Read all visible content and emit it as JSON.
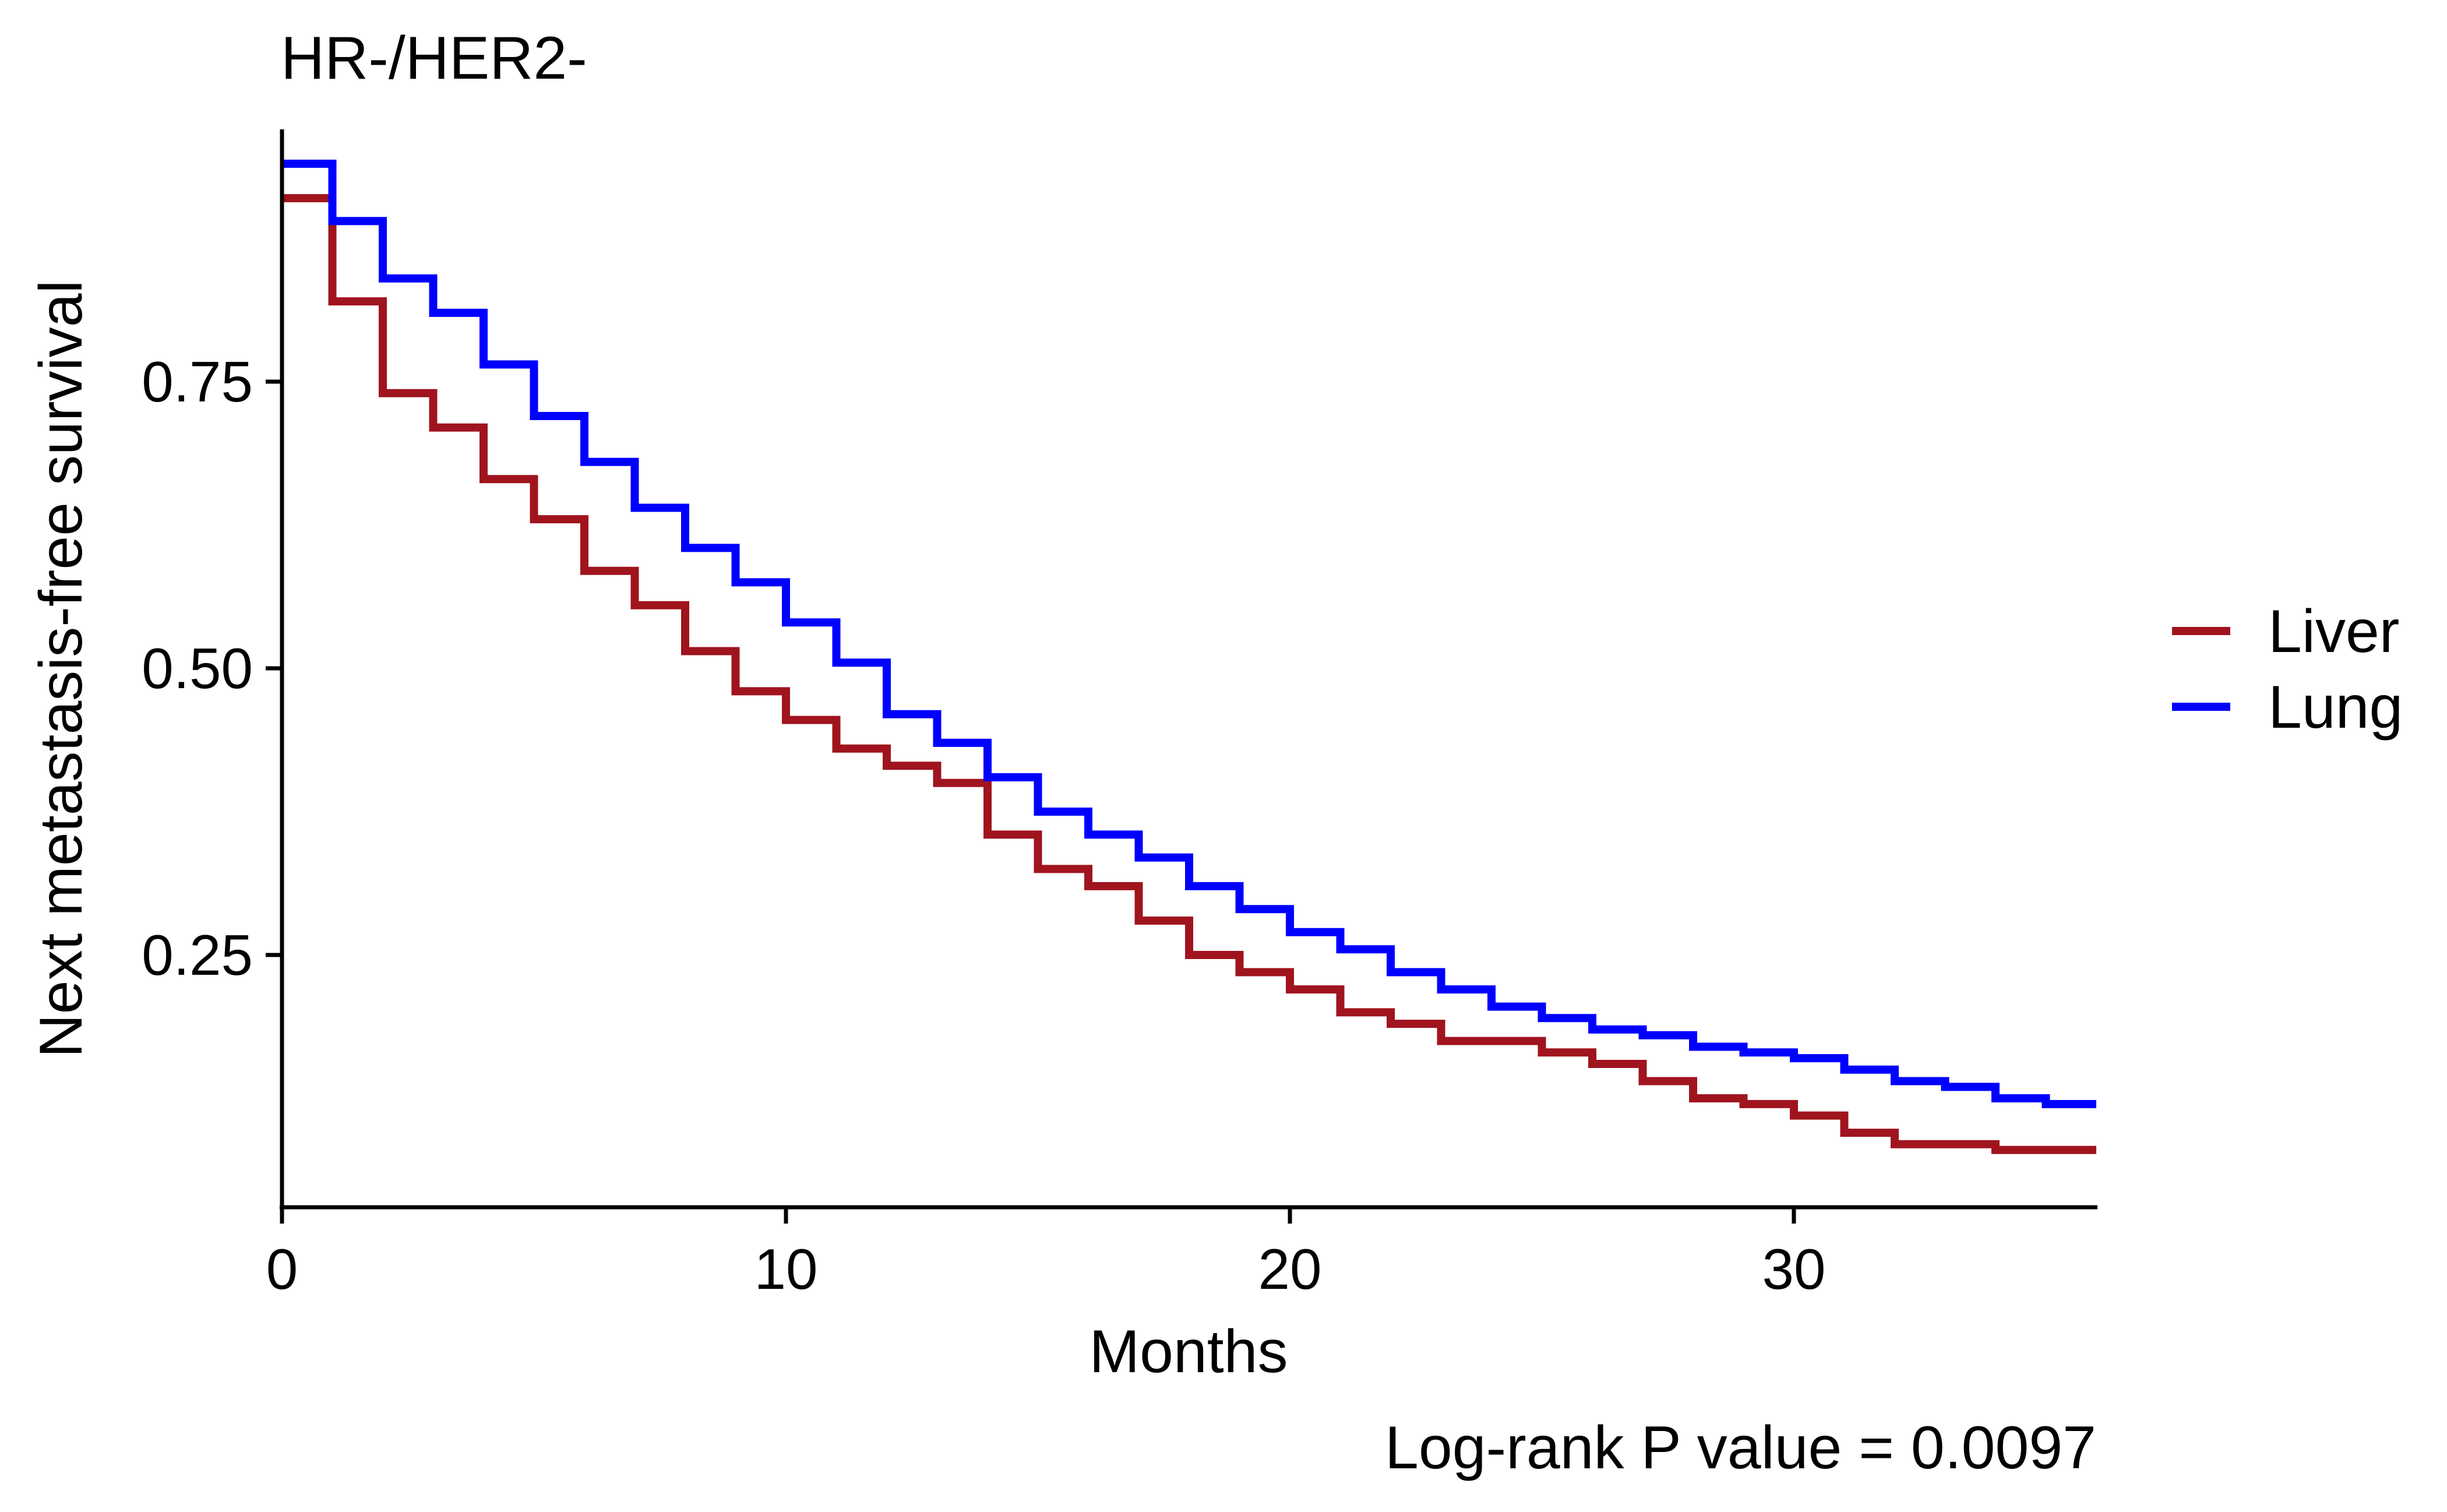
{
  "chart_data": {
    "type": "line",
    "title": "HR-/HER2-",
    "xlabel": "Months",
    "ylabel": "Next metastasis-free survival",
    "xlim": [
      0,
      36
    ],
    "ylim": [
      0.03,
      0.97
    ],
    "x_ticks": [
      0,
      10,
      20,
      30
    ],
    "y_ticks": [
      0.25,
      0.5,
      0.75
    ],
    "x_tick_labels": [
      "0",
      "10",
      "20",
      "30"
    ],
    "y_tick_labels": [
      "0.25",
      "0.50",
      "0.75"
    ],
    "step": true,
    "legend_position": "right",
    "annotation": "Log-rank P value = 0.0097",
    "series": [
      {
        "name": "Liver",
        "color": "#A0141E",
        "x": [
          0,
          1,
          2,
          3,
          4,
          5,
          6,
          7,
          8,
          9,
          10,
          11,
          12,
          13,
          14,
          15,
          16,
          17,
          18,
          19,
          20,
          21,
          22,
          23,
          24,
          25,
          26,
          27,
          28,
          29,
          30,
          31,
          32,
          33,
          34,
          35,
          36
        ],
        "y": [
          0.91,
          0.82,
          0.74,
          0.71,
          0.665,
          0.63,
          0.585,
          0.555,
          0.515,
          0.48,
          0.455,
          0.43,
          0.415,
          0.4,
          0.355,
          0.325,
          0.31,
          0.28,
          0.25,
          0.235,
          0.22,
          0.2,
          0.19,
          0.175,
          0.175,
          0.165,
          0.155,
          0.14,
          0.125,
          0.12,
          0.11,
          0.095,
          0.085,
          0.085,
          0.08,
          0.08,
          0.08
        ]
      },
      {
        "name": "Lung",
        "color": "#0000FF",
        "x": [
          0,
          1,
          2,
          3,
          4,
          5,
          6,
          7,
          8,
          9,
          10,
          11,
          12,
          13,
          14,
          15,
          16,
          17,
          18,
          19,
          20,
          21,
          22,
          23,
          24,
          25,
          26,
          27,
          28,
          29,
          30,
          31,
          32,
          33,
          34,
          35,
          36
        ],
        "y": [
          0.94,
          0.89,
          0.84,
          0.81,
          0.765,
          0.72,
          0.68,
          0.64,
          0.605,
          0.575,
          0.54,
          0.505,
          0.46,
          0.435,
          0.405,
          0.375,
          0.355,
          0.335,
          0.31,
          0.29,
          0.27,
          0.255,
          0.235,
          0.22,
          0.205,
          0.195,
          0.185,
          0.18,
          0.17,
          0.165,
          0.16,
          0.15,
          0.14,
          0.135,
          0.125,
          0.12,
          0.12
        ]
      }
    ]
  }
}
